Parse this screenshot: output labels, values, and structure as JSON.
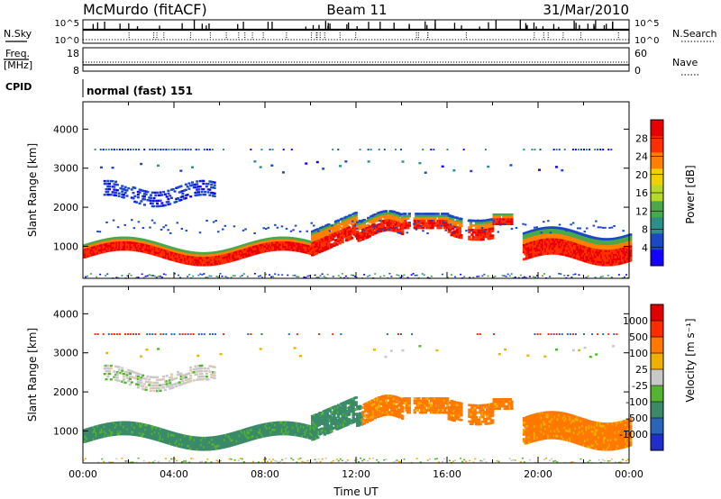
{
  "header": {
    "station": "McMurdo (fitACF)",
    "beam": "Beam 11",
    "date": "31/Mar/2010"
  },
  "nsky_panel": {
    "left_label": "N.Sky",
    "left_ticks": [
      "10^5",
      "10^0"
    ],
    "right_ticks": [
      "10^5",
      "10^0"
    ],
    "right_label": "N.Search"
  },
  "freq_panel": {
    "left_label_1": "Freq.",
    "left_label_2": "[MHz]",
    "left_ticks": [
      "18",
      "8"
    ],
    "right_ticks": [
      "60",
      "0"
    ],
    "right_label": "Nave"
  },
  "cpid": {
    "label": "CPID",
    "mode": "normal (fast) 151"
  },
  "chart_data": [
    {
      "type": "heatmap",
      "name": "power-panel",
      "ylabel": "Slant Range [km]",
      "yticks": [
        "1000",
        "2000",
        "3000",
        "4000"
      ],
      "ytick_values": [
        1000,
        2000,
        3000,
        4000
      ],
      "ylim": [
        180,
        4700
      ],
      "xlim": [
        0,
        24
      ],
      "colorbar": {
        "label": "Power [dB]",
        "ticks": [
          "4",
          "8",
          "12",
          "16",
          "20",
          "24",
          "28"
        ],
        "tick_values": [
          4,
          8,
          12,
          16,
          20,
          24,
          28
        ],
        "range": [
          0,
          32
        ],
        "colors": [
          "#1400ff",
          "#1c48c8",
          "#2d8f85",
          "#4aa84a",
          "#b8d828",
          "#f0d000",
          "#ff8000",
          "#ff3000",
          "#e80000"
        ]
      }
    },
    {
      "type": "heatmap",
      "name": "velocity-panel",
      "ylabel": "Slant Range [km]",
      "yticks": [
        "1000",
        "2000",
        "3000",
        "4000"
      ],
      "ytick_values": [
        1000,
        2000,
        3000,
        4000
      ],
      "ylim": [
        180,
        4700
      ],
      "xlim": [
        0,
        24
      ],
      "xticks": [
        "00:00",
        "04:00",
        "08:00",
        "12:00",
        "16:00",
        "20:00",
        "00:00"
      ],
      "xtick_values": [
        0,
        4,
        8,
        12,
        16,
        20,
        24
      ],
      "xlabel": "Time UT",
      "colorbar": {
        "label": "Velocity [m s⁻¹]",
        "ticks": [
          "1000",
          "500",
          "100",
          "25",
          "-25",
          "-100",
          "-500",
          "-1000"
        ],
        "colors": [
          "#1e2ec8",
          "#2a66b8",
          "#3a8a6a",
          "#54b430",
          "#c8c8c8",
          "#f0b000",
          "#ff7800",
          "#ff2c00",
          "#e00000"
        ]
      }
    }
  ]
}
